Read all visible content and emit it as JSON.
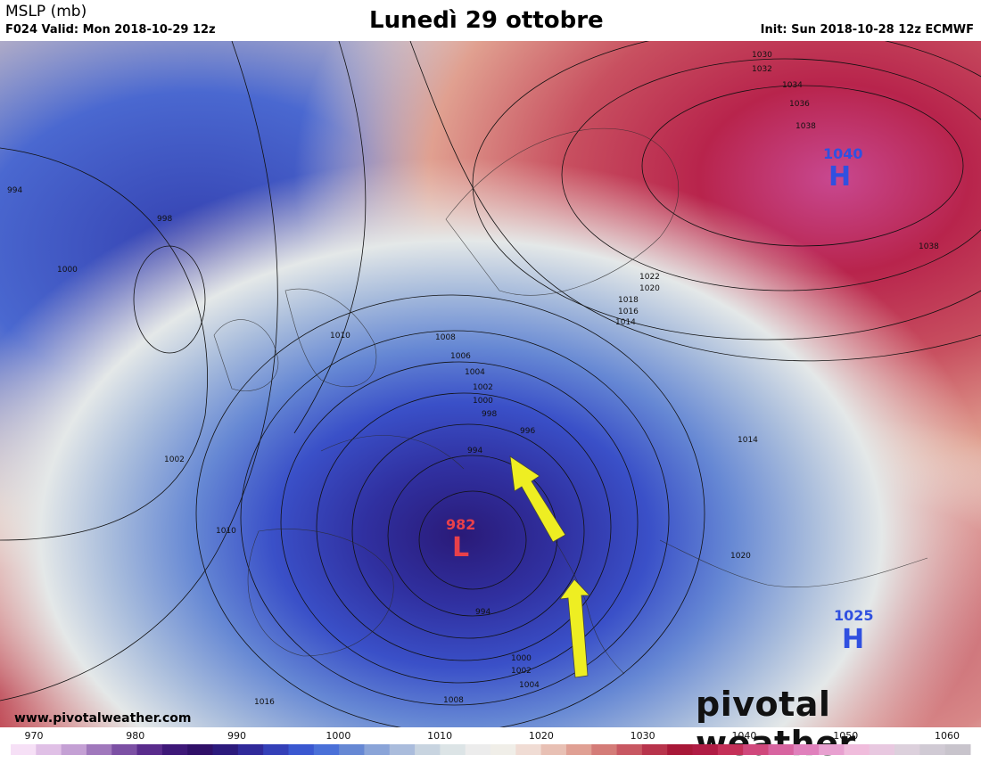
{
  "header": {
    "product": "MSLP (mb)",
    "valid": "F024 Valid: Mon 2018-10-29 12z",
    "title": "Lunedì 29 ottobre",
    "init": "Init: Sun 2018-10-28 12z ECMWF"
  },
  "map": {
    "centers": [
      {
        "type": "L",
        "value": "982",
        "color": "#e8404a"
      },
      {
        "type": "H",
        "value": "1040",
        "color": "#3050e0"
      },
      {
        "type": "H",
        "value": "1025",
        "color": "#3050e0"
      }
    ],
    "isobar_labels": [
      "994",
      "998",
      "1000",
      "1002",
      "1010",
      "1008",
      "1006",
      "1004",
      "1002",
      "1000",
      "998",
      "996",
      "994",
      "994",
      "1000",
      "1002",
      "1004",
      "1008",
      "1016",
      "1010",
      "1014",
      "1020",
      "1022",
      "1020",
      "1018",
      "1016",
      "1014",
      "1030",
      "1032",
      "1034",
      "1036",
      "1038",
      "1038"
    ],
    "arrow_color": "#f0f020"
  },
  "colorbar": {
    "ticks": [
      "970",
      "980",
      "990",
      "1000",
      "1010",
      "1020",
      "1030",
      "1040",
      "1050",
      "1060"
    ],
    "colors": [
      "#f6e0f6",
      "#e0c0e6",
      "#c4a0d4",
      "#a078bc",
      "#7c50a4",
      "#5a2c8c",
      "#3e1878",
      "#301068",
      "#2c1a7c",
      "#302a9a",
      "#3440b8",
      "#3a58d0",
      "#4a70d8",
      "#6688d4",
      "#8aa4d8",
      "#aabcdc",
      "#c8d4e0",
      "#dce4e6",
      "#ececec",
      "#f0eee8",
      "#f0dcd4",
      "#e8c0b4",
      "#e0a094",
      "#d47c78",
      "#c85862",
      "#b8344c",
      "#a81838",
      "#b01c44",
      "#c43058",
      "#d0487c",
      "#d864a0",
      "#e080bc",
      "#e8a0d0",
      "#f0bcdc",
      "#e8c8e0",
      "#dcd0dc",
      "#d0cad4",
      "#c8c4cc"
    ]
  },
  "footer": {
    "website": "www.pivotalweather.com",
    "brand": "pivotal weather"
  }
}
